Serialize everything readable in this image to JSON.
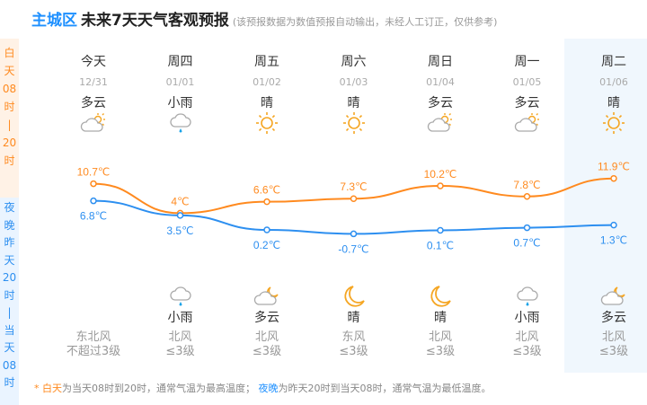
{
  "header": {
    "city": "主城区",
    "title": "未来7天天气客观预报",
    "note": "(该预报数据为数值预报自动输出，未经人工订正，仅供参考)"
  },
  "sidebar": {
    "day_label": [
      "白",
      "天",
      "08",
      "时",
      "|",
      "20",
      "时"
    ],
    "night_label": [
      "夜",
      "晚",
      "昨",
      "天",
      "20",
      "时",
      "|",
      "当",
      "天",
      "08",
      "时"
    ]
  },
  "days": [
    {
      "weekday": "今天",
      "date": "12/31",
      "day_weather": "多云",
      "day_icon": "cloudy-sun",
      "high": "10.7℃",
      "low": "6.8℃",
      "night_weather": "",
      "night_icon": "",
      "wind_dir": "东北风",
      "wind_level": "不超过3级"
    },
    {
      "weekday": "周四",
      "date": "01/01",
      "day_weather": "小雨",
      "day_icon": "light-rain",
      "high": "4℃",
      "low": "3.5℃",
      "night_weather": "小雨",
      "night_icon": "light-rain",
      "wind_dir": "北风",
      "wind_level": "≤3级"
    },
    {
      "weekday": "周五",
      "date": "01/02",
      "day_weather": "晴",
      "day_icon": "sun",
      "high": "6.6℃",
      "low": "0.2℃",
      "night_weather": "多云",
      "night_icon": "cloudy-moon",
      "wind_dir": "北风",
      "wind_level": "≤3级"
    },
    {
      "weekday": "周六",
      "date": "01/03",
      "day_weather": "晴",
      "day_icon": "sun",
      "high": "7.3℃",
      "low": "-0.7℃",
      "night_weather": "晴",
      "night_icon": "moon",
      "wind_dir": "东风",
      "wind_level": "≤3级"
    },
    {
      "weekday": "周日",
      "date": "01/04",
      "day_weather": "多云",
      "day_icon": "cloudy-sun",
      "high": "10.2℃",
      "low": "0.1℃",
      "night_weather": "晴",
      "night_icon": "moon",
      "wind_dir": "北风",
      "wind_level": "≤3级"
    },
    {
      "weekday": "周一",
      "date": "01/05",
      "day_weather": "多云",
      "day_icon": "cloudy-sun",
      "high": "7.8℃",
      "low": "0.7℃",
      "night_weather": "小雨",
      "night_icon": "light-rain",
      "wind_dir": "北风",
      "wind_level": "≤3级"
    },
    {
      "weekday": "周二",
      "date": "01/06",
      "day_weather": "晴",
      "day_icon": "sun",
      "high": "11.9℃",
      "low": "1.3℃",
      "night_weather": "多云",
      "night_icon": "cloudy-moon",
      "wind_dir": "北风",
      "wind_level": "≤3级"
    }
  ],
  "chart_data": {
    "type": "line",
    "categories": [
      "12/31",
      "01/01",
      "01/02",
      "01/03",
      "01/04",
      "01/05",
      "01/06"
    ],
    "series": [
      {
        "values": [
          10.7,
          4,
          6.6,
          7.3,
          10.2,
          7.8,
          11.9
        ]
      },
      {
        "values": [
          6.8,
          3.5,
          0.2,
          -0.7,
          0.1,
          0.7,
          1.3
        ]
      }
    ]
  },
  "footer": {
    "star": "* ",
    "day": "白天",
    "day_text": "为当天08时到20时，通常气温为最高温度；",
    "night": "夜晚",
    "night_text": "为昨天20时到当天08时，通常气温为最低温度。"
  },
  "colors": {
    "high": "#ff8a1f",
    "low": "#2d8ff0",
    "highlight": "#f0f7fd"
  }
}
